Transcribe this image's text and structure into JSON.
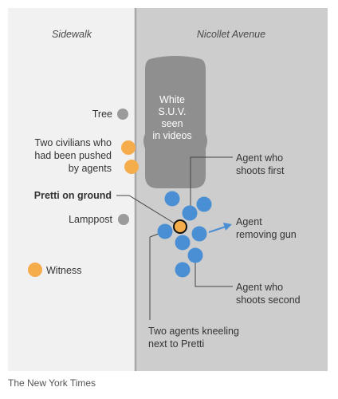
{
  "zones": {
    "sidewalk": "Sidewalk",
    "street": "Nicollet Avenue"
  },
  "suv_label": [
    "White",
    "S.U.V.",
    "seen",
    "in videos"
  ],
  "labels": {
    "tree": "Tree",
    "civilians": [
      "Two civilians who",
      "had been pushed",
      "by agents"
    ],
    "pretti": "Pretti on ground",
    "lamppost": "Lamppost",
    "witness": "Witness",
    "agent_first": [
      "Agent who",
      "shoots first"
    ],
    "agent_gun": [
      "Agent",
      "removing gun"
    ],
    "agent_second": [
      "Agent who",
      "shoots second"
    ],
    "kneeling": [
      "Two agents kneeling",
      "next to Pretti"
    ]
  },
  "credit": "The New York Times",
  "colors": {
    "sidewalk": "#f1f1f1",
    "street": "#cdcdcd",
    "curb": "#a8a8a8",
    "suv": "#8f8f8f",
    "agent": "#4a8ed4",
    "civilian": "#f5ad4b",
    "object": "#9b9b9b",
    "pretti": "#f5ad4b",
    "line": "#444444"
  }
}
